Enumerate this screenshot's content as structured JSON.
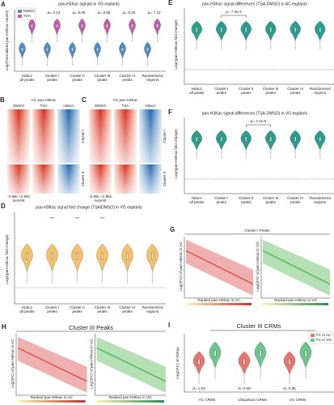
{
  "peak_groups": [
    [
      "Hdac1",
      "all peaks"
    ],
    [
      "Cluster I",
      "peaks"
    ],
    [
      "Cluster II",
      "peaks"
    ],
    [
      "Cluster III",
      "peaks"
    ],
    [
      "Cluster IV",
      "peaks"
    ],
    [
      "Randomized",
      "regions"
    ]
  ],
  "A": {
    "letter": "A",
    "title": "pan-H3Kac signals in VG explants",
    "ylabel": "Log2(normalized pan-H3Kac counts)",
    "legend": [
      "DMSO",
      "TSA"
    ],
    "annotations": [
      "Δ= 9.85",
      "Δ= 4.13",
      "Δ= 9.05",
      "Δ= 9.85",
      "Δ= 8.20",
      "Δ= 7.10"
    ]
  },
  "B": {
    "letter": "B",
    "title": "AC pan-H3Kac",
    "columns": [
      "DMSO",
      "TSA",
      "Hdac1"
    ],
    "rows": [
      "Cluster I",
      "Cluster II"
    ],
    "ticks": [
      "-2.5kb",
      "+2.5kb"
    ],
    "center": "summit"
  },
  "C": {
    "letter": "C",
    "title": "VG pan-H3Kac",
    "columns": [
      "DMSO",
      "TSA",
      "Hdac1"
    ],
    "rows": [
      "Cluster I",
      "Cluster II"
    ],
    "ticks": [
      "-2.5kb",
      "+2.5kb"
    ],
    "center": "summit"
  },
  "D": {
    "letter": "D",
    "title": "pan-H3Kac signal fold change (TSA/DMSO) in VG explants",
    "ylabel": "Log2(pan-H3Kac fold change)",
    "significance": "***"
  },
  "E": {
    "letter": "E",
    "title": "pan-H3Kac signal differences (TSA-DMSO) in AC explants",
    "ylabel": "Log2(pan-H3Kac fold change)",
    "pvalue": "p= 7.5e-4"
  },
  "F": {
    "letter": "F",
    "title": "pan-H3Kac signal differences (TSA-DMSO) in VG explants",
    "ylabel": "Log2(pan-H3Kac fold change)",
    "pvalue": "p= 2.1e-5"
  },
  "G": {
    "letter": "G",
    "title": "Cluster I Peaks",
    "ylabels": [
      "Log2(FC) of pan-H3Kac in AC",
      "Log2(FC) of pan-H3Kac in VG"
    ],
    "xlabels": [
      "Ranked pan-H3Kac in AC",
      "Ranked pan-H3Kac in VG"
    ]
  },
  "H": {
    "letter": "H",
    "title": "Cluster III Peaks",
    "ylabels": [
      "Log2(FC) of pan-H3Kac in AC",
      "Log2(FC) of pan-H3Kac in VG"
    ],
    "xlabels": [
      "Ranked pan-H3Kac in AC",
      "Ranked pan-H3Kac in VG"
    ]
  },
  "I": {
    "letter": "I",
    "title": "Cluster III CRMs",
    "ylabel": "Log2(FC) of H3Kac",
    "legend": [
      "FC in AC",
      "FC in VG"
    ],
    "categories": [
      "AC CRMs",
      "Ubiquitous CRMs",
      "VG CRMs"
    ],
    "effects": [
      "d= 1.03",
      "d= 0.09",
      "d= 0.85"
    ]
  }
}
